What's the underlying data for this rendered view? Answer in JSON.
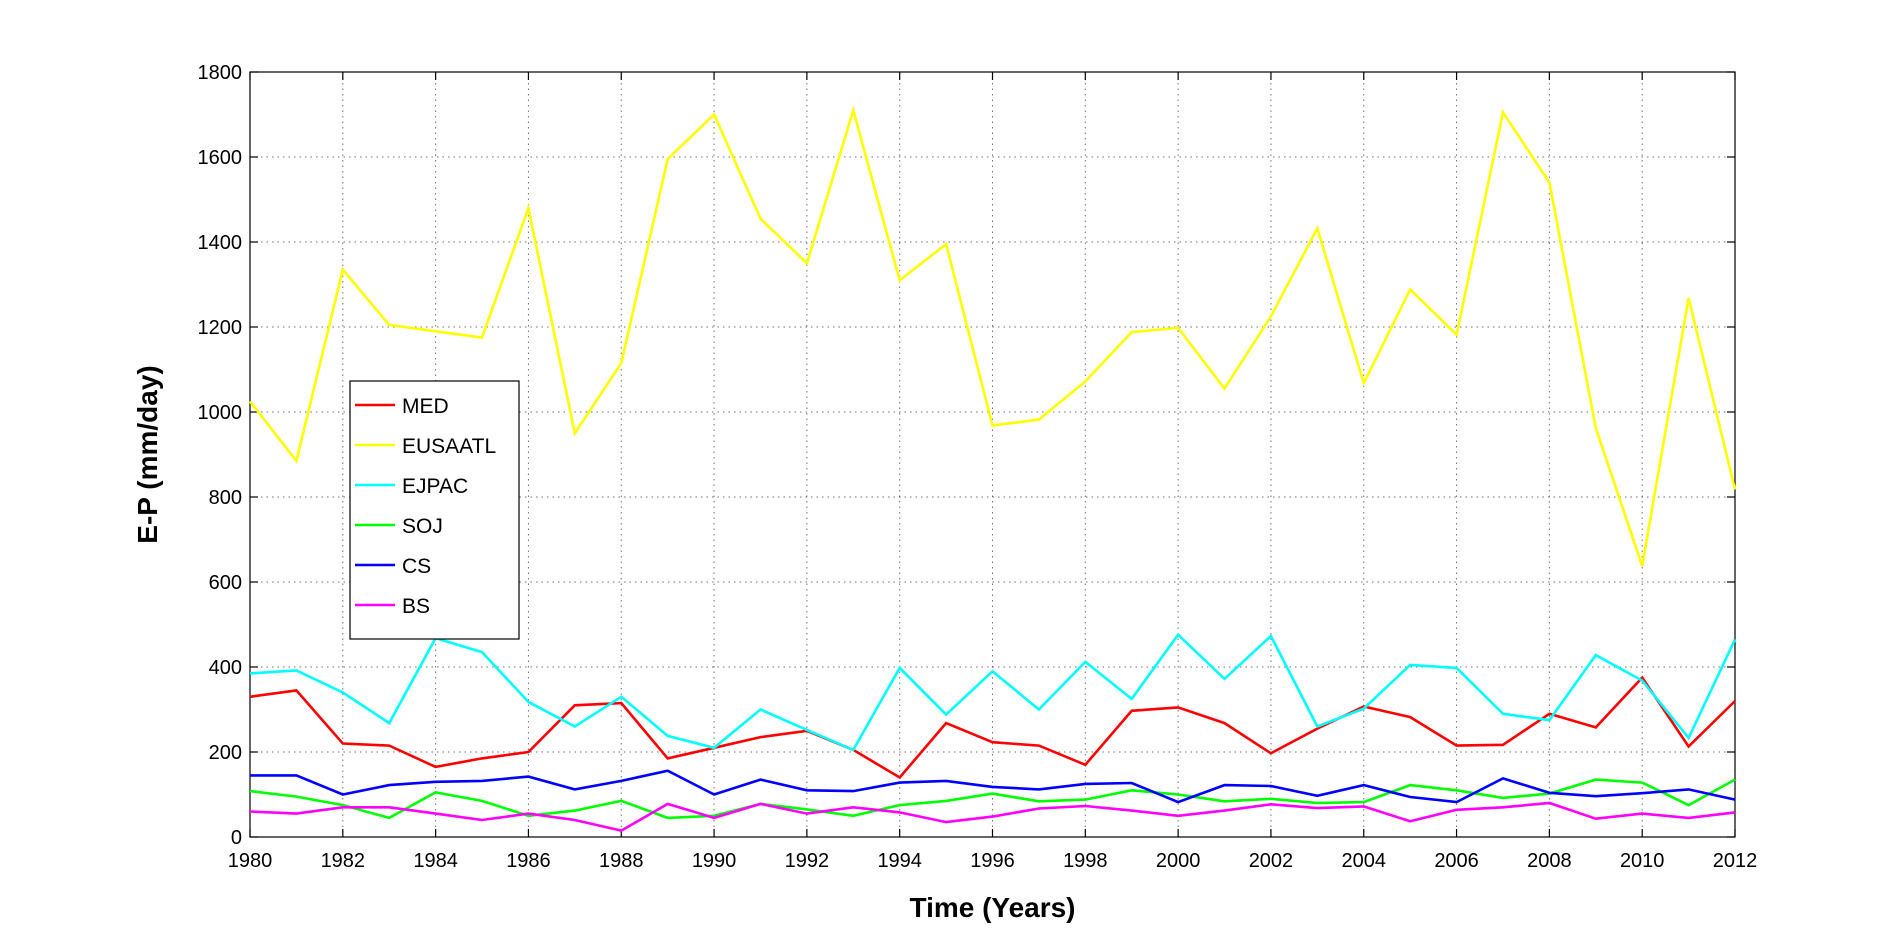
{
  "chart_data": {
    "type": "line",
    "xlabel": "Time (Years)",
    "ylabel": "E-P (mm/day)",
    "xlim": [
      1980,
      2012
    ],
    "ylim": [
      0,
      1800
    ],
    "x_ticks": [
      1980,
      1982,
      1984,
      1986,
      1988,
      1990,
      1992,
      1994,
      1996,
      1998,
      2000,
      2002,
      2004,
      2006,
      2008,
      2010,
      2012
    ],
    "y_ticks": [
      0,
      200,
      400,
      600,
      800,
      1000,
      1200,
      1400,
      1600,
      1800
    ],
    "grid": true,
    "legend_position": "left",
    "x": [
      1980,
      1981,
      1982,
      1983,
      1984,
      1985,
      1986,
      1987,
      1988,
      1989,
      1990,
      1991,
      1992,
      1993,
      1994,
      1995,
      1996,
      1997,
      1998,
      1999,
      2000,
      2001,
      2002,
      2003,
      2004,
      2005,
      2006,
      2007,
      2008,
      2009,
      2010,
      2011,
      2012
    ],
    "series": [
      {
        "name": "MED",
        "color": "#ff0000",
        "values": [
          330,
          345,
          220,
          215,
          165,
          185,
          200,
          310,
          315,
          185,
          210,
          235,
          250,
          205,
          140,
          268,
          223,
          215,
          170,
          297,
          305,
          268,
          197,
          255,
          307,
          282,
          215,
          217,
          290,
          258,
          375,
          213,
          320
        ]
      },
      {
        "name": "EUSAATL",
        "color": "#ffff00",
        "values": [
          1025,
          885,
          1335,
          1205,
          1190,
          1175,
          1480,
          950,
          1115,
          1595,
          1700,
          1455,
          1350,
          1710,
          1310,
          1395,
          968,
          982,
          1072,
          1188,
          1198,
          1055,
          1225,
          1432,
          1068,
          1288,
          1182,
          1705,
          1540,
          962,
          638,
          1268,
          818
        ]
      },
      {
        "name": "EJPAC",
        "color": "#00ffff",
        "values": [
          385,
          392,
          340,
          268,
          468,
          435,
          318,
          260,
          330,
          238,
          210,
          300,
          252,
          205,
          398,
          288,
          390,
          300,
          412,
          325,
          476,
          372,
          473,
          260,
          302,
          405,
          398,
          290,
          275,
          428,
          368,
          233,
          465
        ]
      },
      {
        "name": "SOJ",
        "color": "#00ff00",
        "values": [
          108,
          95,
          75,
          45,
          105,
          85,
          50,
          62,
          85,
          45,
          50,
          78,
          65,
          50,
          75,
          85,
          102,
          84,
          88,
          110,
          100,
          84,
          90,
          80,
          82,
          122,
          110,
          92,
          102,
          135,
          128,
          75,
          135
        ]
      },
      {
        "name": "CS",
        "color": "#0000ff",
        "values": [
          145,
          145,
          100,
          122,
          130,
          132,
          142,
          112,
          132,
          156,
          100,
          135,
          110,
          108,
          128,
          132,
          118,
          112,
          125,
          127,
          82,
          122,
          120,
          97,
          122,
          94,
          82,
          138,
          104,
          96,
          103,
          112,
          88
        ]
      },
      {
        "name": "BS",
        "color": "#ff00ff",
        "values": [
          60,
          55,
          70,
          70,
          55,
          40,
          55,
          40,
          15,
          78,
          45,
          78,
          55,
          70,
          58,
          35,
          48,
          67,
          73,
          62,
          50,
          62,
          77,
          68,
          72,
          37,
          64,
          70,
          80,
          43,
          55,
          45,
          58
        ]
      }
    ]
  }
}
